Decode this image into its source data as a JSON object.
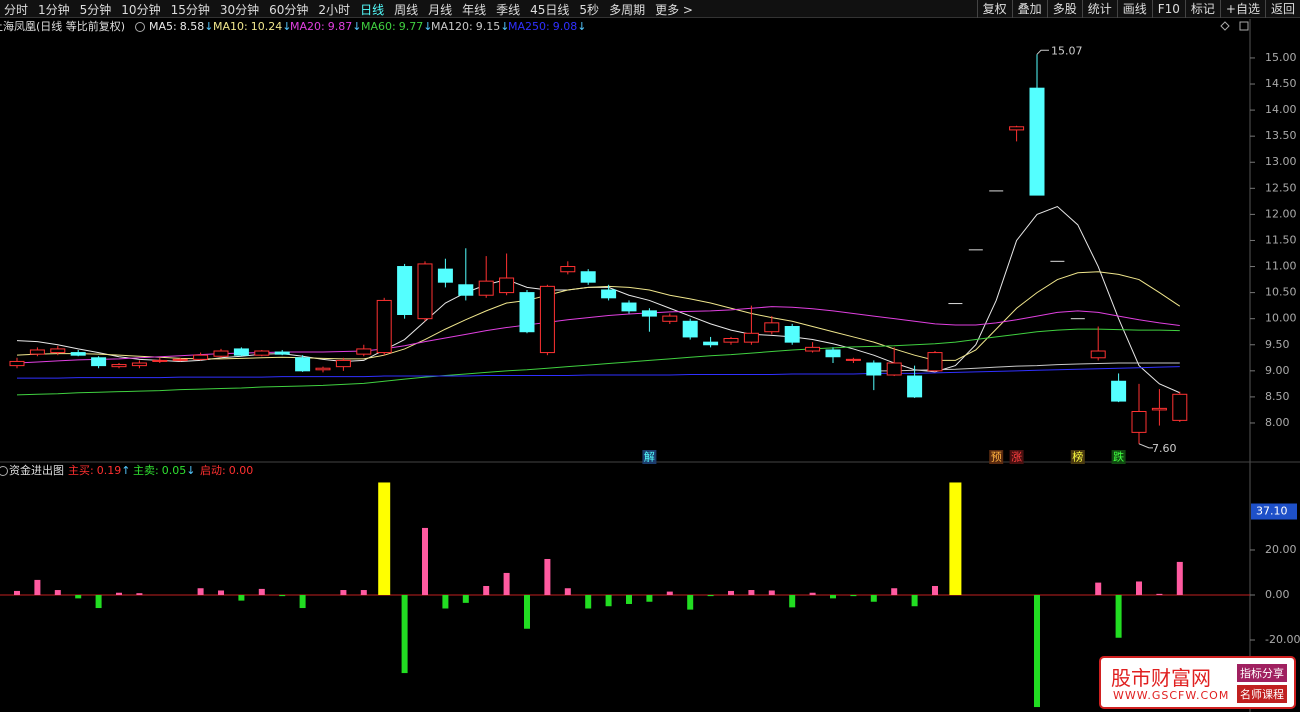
{
  "toolbar": {
    "left": [
      "分时",
      "1分钟",
      "5分钟",
      "10分钟",
      "15分钟",
      "30分钟",
      "60分钟",
      "2小时",
      "日线",
      "周线",
      "月线",
      "年线",
      "季线",
      "45日线",
      "5秒",
      "多周期",
      "更多 >"
    ],
    "active_index": 8,
    "right": [
      "复权",
      "叠加",
      "多股",
      "统计",
      "画线",
      "F10",
      "标记",
      "+自选",
      "返回"
    ]
  },
  "chart_data": [
    {
      "type": "candlestick",
      "title": "上海凤凰(日线 等比前复权)",
      "up_color": "#ff3232",
      "down_color": "#54ffff",
      "open": [
        9.1,
        9.32,
        9.35,
        9.35,
        9.25,
        9.08,
        9.1,
        9.18,
        9.2,
        9.22,
        9.28,
        9.42,
        9.3,
        9.36,
        9.25,
        9.02,
        9.08,
        9.32,
        9.35,
        11.0,
        10.0,
        10.95,
        10.65,
        10.45,
        10.5,
        10.5,
        9.35,
        10.9,
        10.9,
        10.55,
        10.3,
        10.15,
        9.95,
        9.95,
        9.55,
        9.55,
        9.55,
        9.75,
        9.85,
        9.38,
        9.4,
        9.2,
        9.15,
        8.92,
        8.9,
        9.0,
        10.29,
        11.32,
        12.45,
        13.62,
        14.42,
        11.1,
        10.0,
        9.25,
        8.8,
        7.82,
        8.25,
        8.05
      ],
      "close": [
        9.18,
        9.4,
        9.42,
        9.3,
        9.1,
        9.12,
        9.15,
        9.2,
        9.22,
        9.3,
        9.38,
        9.3,
        9.38,
        9.32,
        9.0,
        9.05,
        9.2,
        9.42,
        10.35,
        10.08,
        11.05,
        10.7,
        10.45,
        10.72,
        10.78,
        9.75,
        10.62,
        11.0,
        10.7,
        10.4,
        10.15,
        10.05,
        10.05,
        9.65,
        9.5,
        9.62,
        9.72,
        9.92,
        9.55,
        9.45,
        9.27,
        9.22,
        8.92,
        9.15,
        8.5,
        9.35,
        10.29,
        11.32,
        12.45,
        13.68,
        12.37,
        11.1,
        10.0,
        9.38,
        8.42,
        8.22,
        8.28,
        8.55
      ],
      "high": [
        9.25,
        9.45,
        9.48,
        9.4,
        9.28,
        9.15,
        9.2,
        9.25,
        9.25,
        9.35,
        9.42,
        9.45,
        9.4,
        9.4,
        9.3,
        9.08,
        9.25,
        9.5,
        10.4,
        11.05,
        11.1,
        11.15,
        11.35,
        11.2,
        11.25,
        10.55,
        10.65,
        11.1,
        10.95,
        10.65,
        10.35,
        10.2,
        10.1,
        10.0,
        9.65,
        9.65,
        10.25,
        10.05,
        9.9,
        9.55,
        9.45,
        9.25,
        9.2,
        9.45,
        9.1,
        9.38,
        10.29,
        11.32,
        12.45,
        13.7,
        15.07,
        11.1,
        10.0,
        9.85,
        8.95,
        8.75,
        8.65,
        8.6
      ],
      "low": [
        9.05,
        9.28,
        9.3,
        9.28,
        9.05,
        9.05,
        9.05,
        9.15,
        9.18,
        9.2,
        9.25,
        9.28,
        9.28,
        9.3,
        8.98,
        8.97,
        9.0,
        9.28,
        9.3,
        10.0,
        9.95,
        10.6,
        10.35,
        10.4,
        10.45,
        9.72,
        9.3,
        10.85,
        10.65,
        10.35,
        10.1,
        9.75,
        9.9,
        9.6,
        9.45,
        9.5,
        9.5,
        9.7,
        9.5,
        9.35,
        9.15,
        9.15,
        8.63,
        8.9,
        8.48,
        8.98,
        10.29,
        11.32,
        12.45,
        13.4,
        12.37,
        11.1,
        10.0,
        9.2,
        8.4,
        7.6,
        7.95,
        8.02
      ],
      "high_labels": [
        null,
        null,
        null,
        null,
        null,
        null,
        null,
        null,
        null,
        null,
        null,
        null,
        null,
        null,
        null,
        null,
        null,
        null,
        null,
        null,
        null,
        null,
        null,
        null,
        null,
        null,
        null,
        null,
        null,
        null,
        null,
        null,
        null,
        null,
        null,
        null,
        null,
        null,
        null,
        null,
        null,
        null,
        null,
        null,
        null,
        null,
        null,
        null,
        null,
        null,
        "15.07",
        null,
        null,
        null,
        null,
        null,
        null,
        null
      ],
      "low_labels": [
        null,
        null,
        null,
        null,
        null,
        null,
        null,
        null,
        null,
        null,
        null,
        null,
        null,
        null,
        null,
        null,
        null,
        null,
        null,
        null,
        null,
        null,
        null,
        null,
        null,
        null,
        null,
        null,
        null,
        null,
        null,
        null,
        null,
        null,
        null,
        null,
        null,
        null,
        null,
        null,
        null,
        null,
        null,
        null,
        null,
        null,
        null,
        null,
        null,
        null,
        null,
        null,
        null,
        null,
        null,
        "7.60",
        null,
        null
      ],
      "signals": [
        null,
        null,
        null,
        null,
        null,
        null,
        null,
        null,
        null,
        null,
        null,
        null,
        null,
        null,
        null,
        null,
        null,
        null,
        null,
        null,
        null,
        null,
        null,
        null,
        null,
        null,
        null,
        null,
        null,
        null,
        null,
        {
          "label": "解",
          "color": "#54ffff",
          "bg": "#1c3c6c"
        },
        null,
        null,
        null,
        null,
        null,
        null,
        null,
        null,
        null,
        null,
        null,
        null,
        null,
        null,
        null,
        null,
        {
          "label": "预",
          "color": "#ffb040",
          "bg": "#5a2a10"
        },
        {
          "label": "涨",
          "color": "#ff4040",
          "bg": "#4a1010"
        },
        null,
        null,
        {
          "label": "榜",
          "color": "#ffff40",
          "bg": "#4a3a10"
        },
        null,
        {
          "label": "跌",
          "color": "#40ff40",
          "bg": "#104a10"
        },
        null,
        null,
        null
      ],
      "series": [
        {
          "name": "MA5:",
          "last": 8.58,
          "arrow": "↓",
          "color": "#e8e8e8",
          "values": [
            9.58,
            9.56,
            9.5,
            9.42,
            9.35,
            9.27,
            9.22,
            9.2,
            9.18,
            9.2,
            9.25,
            9.28,
            9.32,
            9.33,
            9.28,
            9.22,
            9.18,
            9.2,
            9.4,
            9.6,
            9.95,
            10.3,
            10.5,
            10.65,
            10.75,
            10.6,
            10.55,
            10.55,
            10.6,
            10.6,
            10.45,
            10.35,
            10.2,
            10.05,
            9.9,
            9.78,
            9.7,
            9.68,
            9.65,
            9.6,
            9.52,
            9.42,
            9.3,
            9.15,
            9.02,
            8.98,
            9.1,
            9.5,
            10.35,
            11.5,
            12.0,
            12.15,
            11.8,
            11.0,
            10.0,
            9.1,
            8.75,
            8.58
          ]
        },
        {
          "name": "MA10:",
          "last": 10.24,
          "arrow": "↓",
          "color": "#f0e68c",
          "values": [
            9.3,
            9.32,
            9.33,
            9.33,
            9.32,
            9.3,
            9.28,
            9.26,
            9.24,
            9.23,
            9.23,
            9.24,
            9.25,
            9.26,
            9.25,
            9.24,
            9.23,
            9.23,
            9.3,
            9.42,
            9.6,
            9.8,
            9.98,
            10.15,
            10.3,
            10.35,
            10.45,
            10.55,
            10.6,
            10.62,
            10.6,
            10.55,
            10.45,
            10.38,
            10.3,
            10.2,
            10.1,
            10.02,
            9.95,
            9.85,
            9.75,
            9.65,
            9.55,
            9.42,
            9.3,
            9.2,
            9.2,
            9.4,
            9.8,
            10.2,
            10.5,
            10.75,
            10.88,
            10.9,
            10.85,
            10.75,
            10.5,
            10.24
          ]
        },
        {
          "name": "MA20:",
          "last": 9.87,
          "arrow": "↓",
          "color": "#e040e0",
          "values": [
            9.15,
            9.17,
            9.19,
            9.21,
            9.22,
            9.23,
            9.25,
            9.27,
            9.29,
            9.31,
            9.33,
            9.34,
            9.35,
            9.36,
            9.36,
            9.36,
            9.37,
            9.38,
            9.42,
            9.48,
            9.56,
            9.63,
            9.7,
            9.77,
            9.83,
            9.88,
            9.93,
            9.98,
            10.02,
            10.06,
            10.09,
            10.11,
            10.13,
            10.14,
            10.15,
            10.17,
            10.2,
            10.23,
            10.22,
            10.19,
            10.15,
            10.1,
            10.05,
            10.0,
            9.95,
            9.9,
            9.88,
            9.88,
            9.92,
            9.98,
            10.05,
            10.12,
            10.15,
            10.12,
            10.05,
            9.98,
            9.92,
            9.87
          ]
        },
        {
          "name": "MA60:",
          "last": 9.77,
          "arrow": "↓",
          "color": "#40d040",
          "values": [
            8.54,
            8.55,
            8.56,
            8.58,
            8.59,
            8.6,
            8.61,
            8.62,
            8.64,
            8.65,
            8.66,
            8.67,
            8.69,
            8.7,
            8.71,
            8.72,
            8.74,
            8.76,
            8.8,
            8.84,
            8.88,
            8.91,
            8.94,
            8.97,
            9.0,
            9.02,
            9.05,
            9.08,
            9.11,
            9.14,
            9.17,
            9.2,
            9.23,
            9.26,
            9.29,
            9.31,
            9.34,
            9.37,
            9.4,
            9.42,
            9.44,
            9.46,
            9.47,
            9.48,
            9.5,
            9.52,
            9.55,
            9.6,
            9.65,
            9.7,
            9.75,
            9.78,
            9.8,
            9.8,
            9.79,
            9.78,
            9.78,
            9.77
          ]
        },
        {
          "name": "MA120:",
          "last": 9.15,
          "arrow": "↓",
          "color": "#c8c8c8",
          "values": [
            null,
            null,
            null,
            null,
            null,
            null,
            null,
            null,
            null,
            null,
            null,
            null,
            null,
            null,
            null,
            null,
            null,
            null,
            null,
            null,
            null,
            null,
            null,
            null,
            null,
            null,
            null,
            null,
            null,
            null,
            null,
            null,
            null,
            null,
            null,
            null,
            null,
            null,
            null,
            null,
            null,
            null,
            9.0,
            9.0,
            9.01,
            9.02,
            9.03,
            9.05,
            9.07,
            9.09,
            9.1,
            9.12,
            9.13,
            9.14,
            9.15,
            9.15,
            9.15,
            9.15
          ]
        },
        {
          "name": "MA250:",
          "last": 9.08,
          "arrow": "↓",
          "color": "#3030ff",
          "values": [
            8.86,
            8.86,
            8.86,
            8.87,
            8.87,
            8.87,
            8.87,
            8.87,
            8.88,
            8.88,
            8.88,
            8.88,
            8.88,
            8.89,
            8.89,
            8.89,
            8.89,
            8.89,
            8.9,
            8.9,
            8.9,
            8.9,
            8.9,
            8.91,
            8.91,
            8.91,
            8.91,
            8.91,
            8.92,
            8.92,
            8.92,
            8.92,
            8.92,
            8.93,
            8.93,
            8.93,
            8.93,
            8.93,
            8.94,
            8.94,
            8.94,
            8.94,
            8.95,
            8.95,
            8.95,
            8.96,
            8.97,
            8.98,
            8.99,
            9.0,
            9.01,
            9.02,
            9.03,
            9.04,
            9.05,
            9.06,
            9.07,
            9.08
          ]
        }
      ],
      "ylim": [
        7.29,
        15.44
      ],
      "yticks": [
        {
          "value": 8,
          "label": "8.00"
        },
        {
          "value": 8.5,
          "label": "8.50"
        },
        {
          "value": 9,
          "label": "9.00"
        },
        {
          "value": 9.5,
          "label": "9.50"
        },
        {
          "value": 10,
          "label": "10.00"
        },
        {
          "value": 10.5,
          "label": "10.50"
        },
        {
          "value": 11,
          "label": "11.00"
        },
        {
          "value": 11.5,
          "label": "11.50"
        },
        {
          "value": 12,
          "label": "12.00"
        },
        {
          "value": 12.5,
          "label": "12.50"
        },
        {
          "value": 13,
          "label": "13.00"
        },
        {
          "value": 13.5,
          "label": "13.50"
        },
        {
          "value": 14,
          "label": "14.00"
        },
        {
          "value": 14.5,
          "label": "14.50"
        },
        {
          "value": 15,
          "label": "15.00"
        }
      ]
    },
    {
      "type": "bar",
      "title": "资金进出图",
      "series": [
        {
          "name": "主买:",
          "last": 0.19,
          "arrow": "↑",
          "legend_color": "#ff3030",
          "color": "#ff5aa0",
          "width": 6,
          "values": [
            1.8,
            6.7,
            2.2,
            null,
            null,
            1.0,
            0.8,
            null,
            null,
            3.0,
            2.0,
            null,
            2.7,
            null,
            null,
            null,
            2.2,
            2.2,
            null,
            null,
            29.8,
            null,
            null,
            4.0,
            9.8,
            null,
            16.0,
            3.0,
            null,
            null,
            null,
            null,
            1.5,
            null,
            null,
            1.8,
            2.2,
            2.0,
            null,
            1.0,
            null,
            null,
            null,
            3.0,
            null,
            4.0,
            null,
            null,
            null,
            null,
            null,
            null,
            null,
            5.5,
            null,
            6.0,
            0.5,
            14.7
          ]
        },
        {
          "name": "主卖:",
          "last": 0.05,
          "arrow": "↓",
          "legend_color": "#30e030",
          "color": "#22dd22",
          "width": 6,
          "values": [
            null,
            null,
            null,
            -1.5,
            -5.8,
            null,
            null,
            null,
            null,
            null,
            null,
            -2.5,
            null,
            -0.5,
            -5.8,
            null,
            null,
            null,
            null,
            -34.7,
            null,
            -6.0,
            -3.5,
            null,
            null,
            -15.0,
            null,
            null,
            -6.0,
            -5.0,
            -4.0,
            -3.0,
            null,
            -6.5,
            -0.5,
            null,
            null,
            null,
            -5.5,
            null,
            -1.5,
            -0.5,
            -3.0,
            null,
            -5.0,
            null,
            null,
            null,
            null,
            null,
            -49.8,
            null,
            null,
            null,
            -19.0,
            null,
            null,
            null
          ]
        },
        {
          "name": "启动:",
          "last": 0,
          "last_label": "0.00",
          "legend_color": "#ff3030",
          "color": "#ffff00",
          "width": 12,
          "values": [
            null,
            null,
            null,
            null,
            null,
            null,
            null,
            null,
            null,
            null,
            null,
            null,
            null,
            null,
            null,
            null,
            null,
            null,
            50,
            null,
            null,
            null,
            null,
            null,
            null,
            null,
            null,
            null,
            null,
            null,
            null,
            null,
            null,
            null,
            null,
            null,
            null,
            null,
            null,
            null,
            null,
            null,
            null,
            null,
            null,
            null,
            50,
            null,
            null,
            null,
            null,
            null,
            null,
            null,
            null,
            null,
            null,
            null
          ]
        }
      ],
      "ylim": [
        -52,
        51.1
      ],
      "yticks": [
        {
          "value": -20,
          "label": "-20.00"
        },
        {
          "value": 0,
          "label": "0.00"
        },
        {
          "value": 20,
          "label": "20.00"
        }
      ],
      "marker": {
        "value": 37.1,
        "label": "37.10"
      }
    }
  ],
  "watermark": {
    "title": "股市财富网",
    "url": "WWW.GSCFW.COM",
    "tag1": "指标分享",
    "tag2": "名师课程"
  }
}
